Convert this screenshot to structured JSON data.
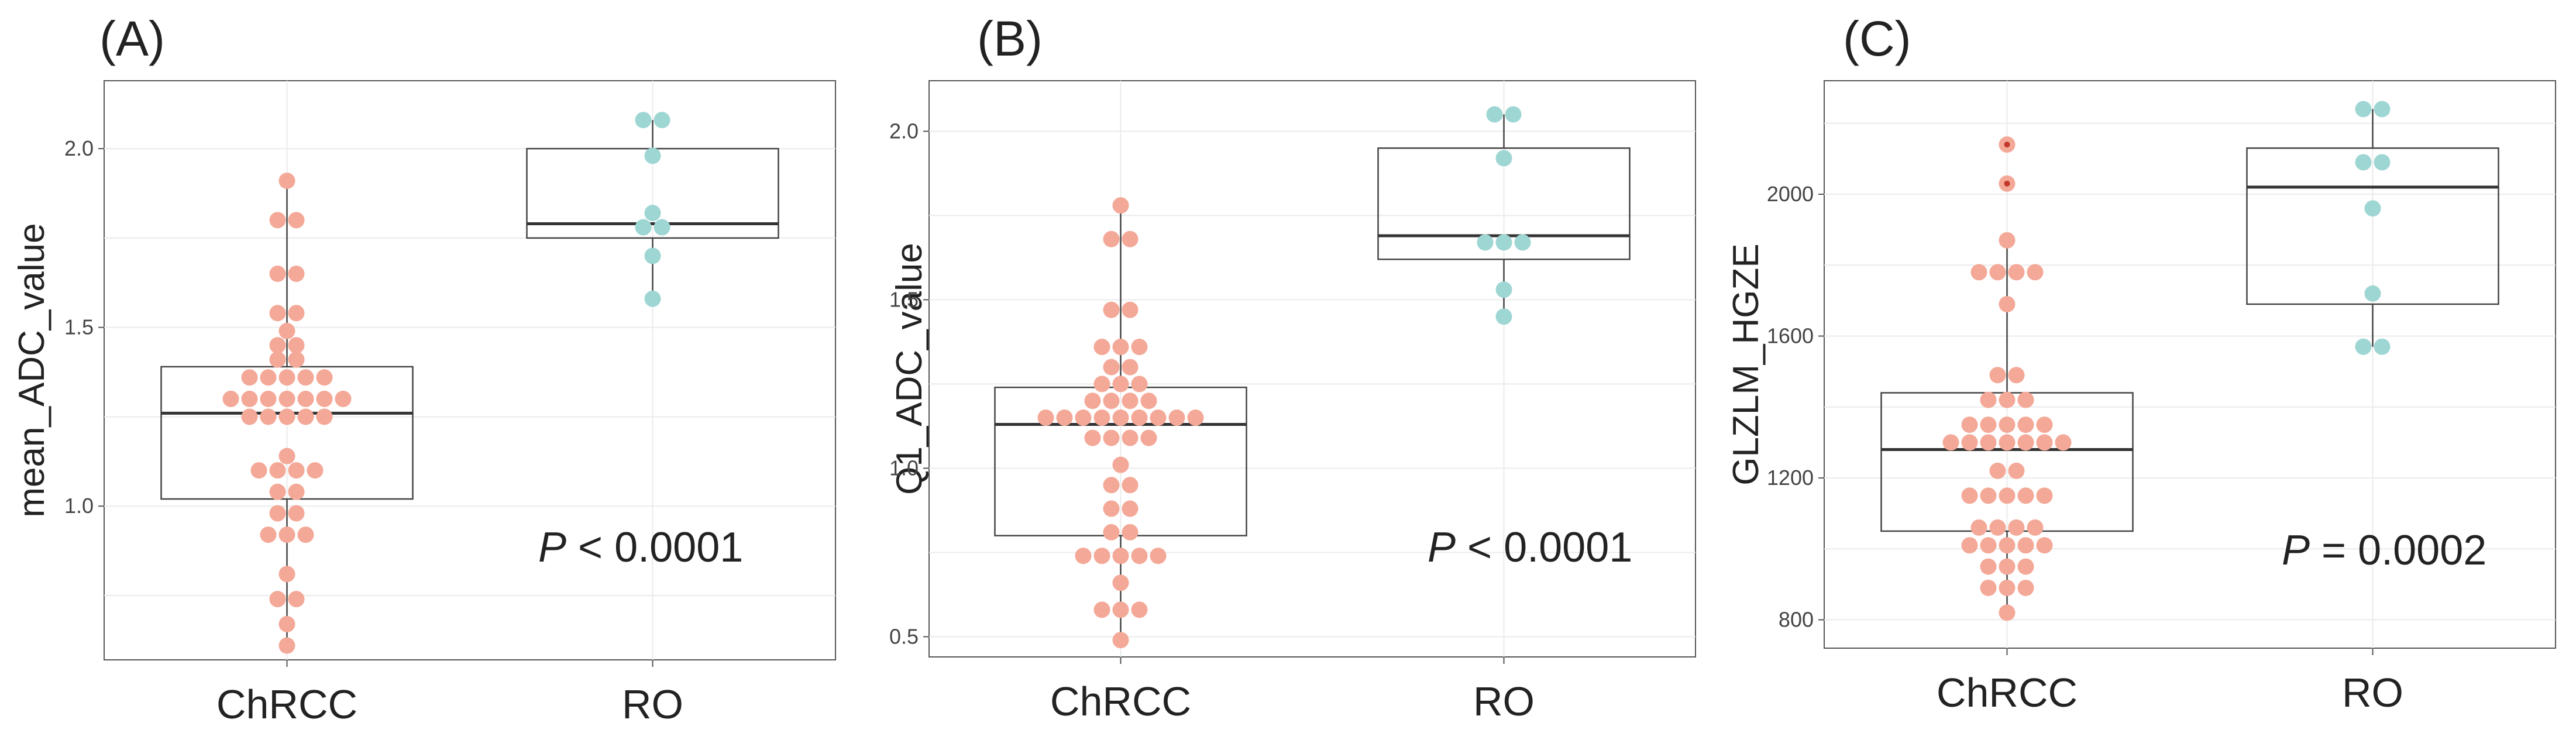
{
  "colors": {
    "ChRCC": "#F4A897",
    "RO": "#9ED6D3",
    "grid": "#EBEBEB",
    "box": "#444444",
    "median": "#333333",
    "outlier": "#C0392B"
  },
  "chart_data": [
    {
      "type": "box+dotplot",
      "panel": "(A)",
      "ylabel": "mean_ADC_value",
      "ylim": [
        0.57,
        2.19
      ],
      "yticks": [
        1.0,
        1.5,
        2.0
      ],
      "ytick_labels": [
        "1.0",
        "1.5",
        "2.0"
      ],
      "categories": [
        "ChRCC",
        "RO"
      ],
      "p_label": "P",
      "p_text": " < 0.0001",
      "grid": true,
      "boxes": [
        {
          "q1": 1.02,
          "median": 1.26,
          "q3": 1.39,
          "whisker_low": 0.61,
          "whisker_high": 1.91
        },
        {
          "q1": 1.75,
          "median": 1.79,
          "q3": 2.0,
          "whisker_low": 1.58,
          "whisker_high": 2.08
        }
      ],
      "series": [
        {
          "name": "ChRCC",
          "values": [
            1.91,
            1.8,
            1.8,
            1.65,
            1.65,
            1.54,
            1.54,
            1.49,
            1.45,
            1.45,
            1.41,
            1.41,
            1.36,
            1.36,
            1.36,
            1.36,
            1.36,
            1.3,
            1.3,
            1.3,
            1.3,
            1.3,
            1.3,
            1.3,
            1.25,
            1.25,
            1.25,
            1.25,
            1.25,
            1.14,
            1.1,
            1.1,
            1.1,
            1.1,
            1.04,
            1.04,
            0.98,
            0.98,
            0.92,
            0.92,
            0.92,
            0.81,
            0.74,
            0.74,
            0.67,
            0.61
          ],
          "outliers": []
        },
        {
          "name": "RO",
          "values": [
            2.08,
            2.08,
            1.98,
            1.82,
            1.78,
            1.78,
            1.7,
            1.58
          ],
          "outliers": []
        }
      ]
    },
    {
      "type": "box+dotplot",
      "panel": "(B)",
      "ylabel": "Q1_ADC_value",
      "ylim": [
        0.44,
        2.15
      ],
      "yticks": [
        0.5,
        1.0,
        1.5,
        2.0
      ],
      "ytick_labels": [
        "0.5",
        "1.0",
        "1.5",
        "2.0"
      ],
      "categories": [
        "ChRCC",
        "RO"
      ],
      "p_label": "P",
      "p_text": " < 0.0001",
      "grid": true,
      "boxes": [
        {
          "q1": 0.8,
          "median": 1.13,
          "q3": 1.24,
          "whisker_low": 0.49,
          "whisker_high": 1.78
        },
        {
          "q1": 1.62,
          "median": 1.69,
          "q3": 1.95,
          "whisker_low": 1.45,
          "whisker_high": 2.05
        }
      ],
      "series": [
        {
          "name": "ChRCC",
          "values": [
            1.78,
            1.68,
            1.68,
            1.47,
            1.47,
            1.36,
            1.36,
            1.36,
            1.3,
            1.3,
            1.25,
            1.25,
            1.25,
            1.2,
            1.2,
            1.2,
            1.2,
            1.15,
            1.15,
            1.15,
            1.15,
            1.15,
            1.15,
            1.15,
            1.15,
            1.15,
            1.09,
            1.09,
            1.09,
            1.09,
            1.01,
            0.95,
            0.95,
            0.88,
            0.88,
            0.81,
            0.81,
            0.74,
            0.74,
            0.74,
            0.74,
            0.74,
            0.66,
            0.58,
            0.58,
            0.58,
            0.49
          ],
          "outliers": []
        },
        {
          "name": "RO",
          "values": [
            2.05,
            2.05,
            1.92,
            1.67,
            1.67,
            1.67,
            1.53,
            1.45
          ],
          "outliers": []
        }
      ]
    },
    {
      "type": "box+dotplot",
      "panel": "(C)",
      "ylabel": "GLZLM_HGZE",
      "ylim": [
        720,
        2320
      ],
      "yticks": [
        800,
        1200,
        1600,
        2000
      ],
      "ytick_labels": [
        "800",
        "1200",
        "1600",
        "2000"
      ],
      "categories": [
        "ChRCC",
        "RO"
      ],
      "p_label": "P",
      "p_text": " = 0.0002",
      "grid": true,
      "boxes": [
        {
          "q1": 1050,
          "median": 1280,
          "q3": 1440,
          "whisker_low": 820,
          "whisker_high": 1870
        },
        {
          "q1": 1690,
          "median": 2020,
          "q3": 2130,
          "whisker_low": 1570,
          "whisker_high": 2240
        }
      ],
      "series": [
        {
          "name": "ChRCC",
          "values": [
            1870,
            1780,
            1780,
            1780,
            1780,
            1690,
            1490,
            1490,
            1420,
            1420,
            1420,
            1350,
            1350,
            1350,
            1350,
            1350,
            1300,
            1300,
            1300,
            1300,
            1300,
            1300,
            1300,
            1220,
            1220,
            1150,
            1150,
            1150,
            1150,
            1150,
            1060,
            1060,
            1060,
            1060,
            1010,
            1010,
            1010,
            1010,
            1010,
            950,
            950,
            950,
            890,
            890,
            890,
            820
          ],
          "outliers": [
            2140,
            2030
          ]
        },
        {
          "name": "RO",
          "values": [
            2240,
            2240,
            2090,
            2090,
            1960,
            1720,
            1570,
            1570
          ],
          "outliers": []
        }
      ]
    }
  ]
}
